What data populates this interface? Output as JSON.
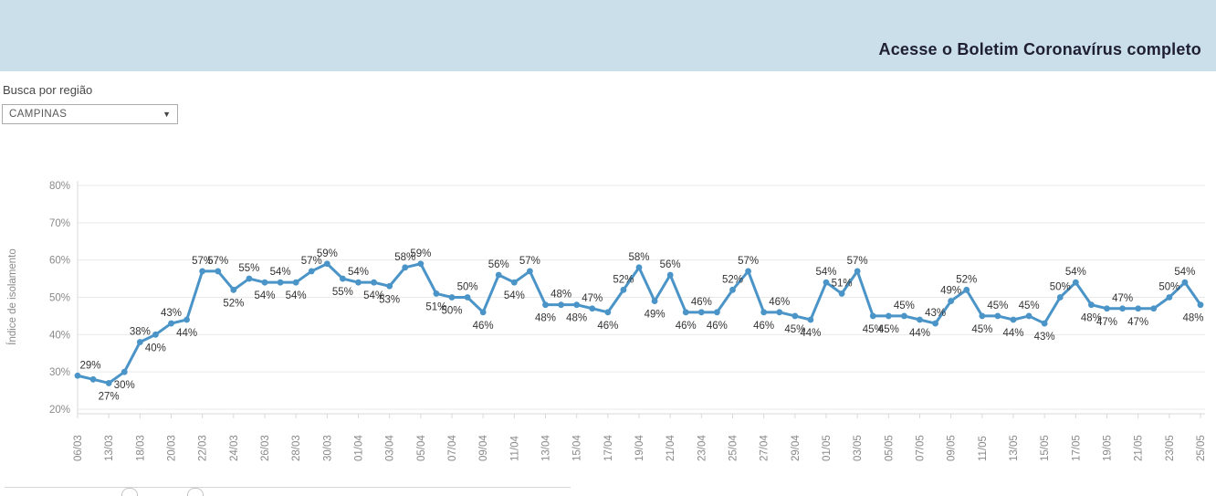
{
  "banner": {
    "title": "Acesse o Boletim Coronavírus completo",
    "bg_color": "#cbdfea",
    "text_color": "#1f1f33"
  },
  "filter": {
    "label": "Busca por região",
    "value": "CAMPINAS",
    "caret_icon": "▼"
  },
  "chart_data": {
    "type": "line",
    "title": "",
    "ylabel": "Índice de isolamento",
    "xlabel": "",
    "ylim": [
      20,
      80
    ],
    "grid": "horizontal",
    "line_color": "#4a94c8",
    "label_color": "#333333",
    "axis_text_color": "#8a8a8a",
    "y_tick_labels": [
      "20%",
      "30%",
      "40%",
      "50%",
      "60%",
      "70%",
      "80%"
    ],
    "x_tick_labels": [
      "06/03",
      "13/03",
      "18/03",
      "20/03",
      "22/03",
      "24/03",
      "26/03",
      "28/03",
      "30/03",
      "01/04",
      "03/04",
      "05/04",
      "07/04",
      "09/04",
      "11/04",
      "13/04",
      "15/04",
      "17/04",
      "19/04",
      "21/04",
      "23/04",
      "25/04",
      "27/04",
      "29/04",
      "01/05",
      "03/05",
      "05/05",
      "07/05",
      "09/05",
      "11/05",
      "13/05",
      "15/05",
      "17/05",
      "19/05",
      "21/05",
      "23/05",
      "25/05"
    ],
    "series": [
      {
        "name": "Índice de isolamento (%)",
        "values": [
          29,
          28,
          27,
          30,
          38,
          40,
          43,
          44,
          57,
          57,
          52,
          55,
          54,
          54,
          54,
          57,
          59,
          55,
          54,
          54,
          53,
          58,
          59,
          51,
          50,
          50,
          46,
          56,
          54,
          57,
          48,
          48,
          48,
          47,
          46,
          52,
          58,
          49,
          56,
          46,
          46,
          46,
          52,
          57,
          46,
          46,
          45,
          44,
          54,
          51,
          57,
          45,
          45,
          45,
          44,
          43,
          49,
          52,
          45,
          45,
          44,
          45,
          43,
          50,
          54,
          48,
          47,
          47,
          47,
          47,
          50,
          54,
          48
        ],
        "label_sides": [
          "a",
          "n",
          "b",
          "b",
          "a",
          "b",
          "a",
          "b",
          "a",
          "a",
          "b",
          "a",
          "b",
          "a",
          "b",
          "a",
          "a",
          "b",
          "a",
          "b",
          "b",
          "a",
          "a",
          "b",
          "b",
          "a",
          "b",
          "a",
          "b",
          "a",
          "b",
          "a",
          "b",
          "a",
          "b",
          "a",
          "a",
          "b",
          "a",
          "b",
          "a",
          "b",
          "a",
          "a",
          "b",
          "a",
          "b",
          "b",
          "a",
          "a",
          "a",
          "b",
          "b",
          "a",
          "b",
          "a",
          "a",
          "a",
          "b",
          "a",
          "b",
          "a",
          "b",
          "a",
          "a",
          "b",
          "b",
          "a",
          "b",
          "n",
          "a",
          "a",
          "b"
        ],
        "label_suffix": "%"
      }
    ]
  }
}
